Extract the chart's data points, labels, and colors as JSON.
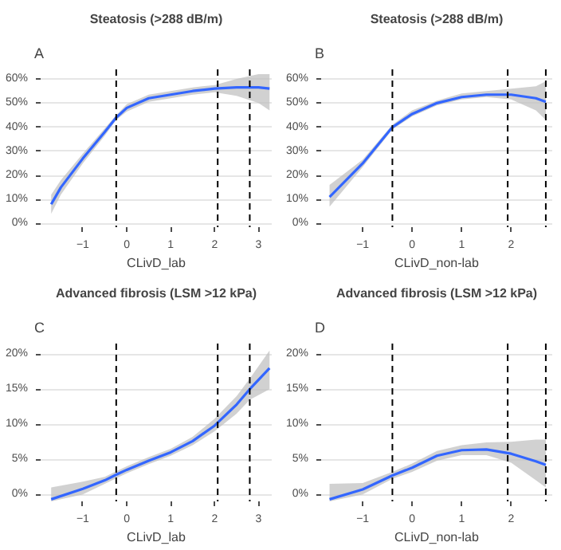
{
  "chart_data": [
    {
      "type": "line",
      "annotations": [
        "A"
      ],
      "title": "Steatosis (>288 dB/m)",
      "xlabel": "CLivD_lab",
      "xlim": [
        -1.96,
        3.3
      ],
      "xticks": [
        -1,
        0,
        1,
        2,
        3
      ],
      "ylim": [
        -1.5,
        64
      ],
      "yticks": [
        {
          "value": 0,
          "label": "0%"
        },
        {
          "value": 10,
          "label": "10%"
        },
        {
          "value": 20,
          "label": "20%"
        },
        {
          "value": 30,
          "label": "30%"
        },
        {
          "value": 40,
          "label": "40%"
        },
        {
          "value": 50,
          "label": "50%"
        },
        {
          "value": 60,
          "label": "60%"
        }
      ],
      "grid": "y",
      "line_style": "solid",
      "series": [
        {
          "color": "#3366ff",
          "x": [
            -1.72,
            -1.5,
            -1,
            -0.5,
            -0.24,
            0,
            0.5,
            1,
            1.5,
            2,
            2.5,
            3,
            3.25
          ],
          "values": [
            8,
            15,
            27,
            38,
            44,
            48,
            52,
            53.5,
            55,
            56,
            56.5,
            56.5,
            56
          ],
          "lower": [
            4,
            12,
            25,
            36.5,
            43,
            46.5,
            50.5,
            52,
            53.5,
            54.5,
            53,
            50,
            47
          ],
          "upper": [
            12,
            18,
            29,
            39.5,
            45,
            49.5,
            53.5,
            55,
            56.5,
            57.5,
            60,
            62,
            62
          ]
        }
      ],
      "ref_lines": [
        {
          "axis": "x",
          "value": -0.24,
          "line_style": "dashed",
          "color": "#000000"
        },
        {
          "axis": "x",
          "value": 2.07,
          "line_style": "dashed",
          "color": "#000000"
        },
        {
          "axis": "x",
          "value": 2.8,
          "line_style": "dashed",
          "color": "#000000"
        }
      ]
    },
    {
      "type": "line",
      "annotations": [
        "B"
      ],
      "title": "Steatosis (>288 dB/m)",
      "xlabel": "CLivD_non-lab",
      "xlim": [
        -1.84,
        2.83
      ],
      "xticks": [
        -1,
        0,
        1,
        2
      ],
      "ylim": [
        -1.5,
        64
      ],
      "yticks": [
        {
          "value": 0,
          "label": "0%"
        },
        {
          "value": 10,
          "label": "10%"
        },
        {
          "value": 20,
          "label": "20%"
        },
        {
          "value": 30,
          "label": "30%"
        },
        {
          "value": 40,
          "label": "40%"
        },
        {
          "value": 50,
          "label": "50%"
        },
        {
          "value": 60,
          "label": "60%"
        }
      ],
      "grid": "y",
      "line_style": "solid",
      "series": [
        {
          "color": "#3366ff",
          "x": [
            -1.67,
            -1,
            -0.4,
            0,
            0.5,
            1,
            1.5,
            2,
            2.5,
            2.7
          ],
          "values": [
            11,
            25,
            40,
            45.5,
            50,
            52.5,
            53.5,
            53.5,
            52,
            50.5
          ],
          "lower": [
            7,
            23.5,
            39,
            44.5,
            49,
            51.5,
            52.5,
            51.5,
            47,
            43
          ],
          "upper": [
            16,
            26.5,
            41,
            47,
            51,
            54,
            55,
            56,
            57,
            59
          ]
        }
      ],
      "ref_lines": [
        {
          "axis": "x",
          "value": -0.4,
          "line_style": "dashed",
          "color": "#000000"
        },
        {
          "axis": "x",
          "value": 1.93,
          "line_style": "dashed",
          "color": "#000000"
        },
        {
          "axis": "x",
          "value": 2.7,
          "line_style": "dashed",
          "color": "#000000"
        }
      ]
    },
    {
      "type": "line",
      "annotations": [
        "C"
      ],
      "title": "Advanced fibrosis (LSM >12 kPa)",
      "xlabel": "CLivD_lab",
      "xlim": [
        -1.96,
        3.3
      ],
      "xticks": [
        -1,
        0,
        1,
        2,
        3
      ],
      "ylim": [
        -1,
        21.5
      ],
      "yticks": [
        {
          "value": 0,
          "label": "0%"
        },
        {
          "value": 5,
          "label": "5%"
        },
        {
          "value": 10,
          "label": "10%"
        },
        {
          "value": 15,
          "label": "15%"
        },
        {
          "value": 20,
          "label": "20%"
        }
      ],
      "grid": "y",
      "line_style": "solid",
      "series": [
        {
          "color": "#3366ff",
          "x": [
            -1.72,
            -1,
            -0.5,
            -0.24,
            0,
            0.5,
            1,
            1.5,
            2,
            2.5,
            2.8,
            3.25
          ],
          "values": [
            -0.7,
            0.8,
            2,
            2.8,
            3.5,
            4.8,
            6,
            7.6,
            9.8,
            12.8,
            15,
            18
          ],
          "lower": [
            -1,
            0,
            1.5,
            2.3,
            3,
            4.3,
            5.5,
            7,
            9,
            11.5,
            13.5,
            15
          ],
          "upper": [
            1,
            1.8,
            2.5,
            3.3,
            4,
            5.3,
            6.5,
            8.2,
            10.8,
            14,
            16.5,
            20.5
          ]
        }
      ],
      "ref_lines": [
        {
          "axis": "x",
          "value": -0.24,
          "line_style": "dashed",
          "color": "#000000"
        },
        {
          "axis": "x",
          "value": 2.07,
          "line_style": "dashed",
          "color": "#000000"
        },
        {
          "axis": "x",
          "value": 2.8,
          "line_style": "dashed",
          "color": "#000000"
        }
      ]
    },
    {
      "type": "line",
      "annotations": [
        "D"
      ],
      "title": "Advanced fibrosis (LSM >12 kPa)",
      "xlabel": "CLivD_non-lab",
      "xlim": [
        -1.84,
        2.83
      ],
      "xticks": [
        -1,
        0,
        1,
        2
      ],
      "ylim": [
        -1,
        21.5
      ],
      "yticks": [
        {
          "value": 0,
          "label": "0%"
        },
        {
          "value": 5,
          "label": "5%"
        },
        {
          "value": 10,
          "label": "10%"
        },
        {
          "value": 15,
          "label": "15%"
        },
        {
          "value": 20,
          "label": "20%"
        }
      ],
      "grid": "y",
      "line_style": "solid",
      "series": [
        {
          "color": "#3366ff",
          "x": [
            -1.67,
            -1,
            -0.4,
            0,
            0.5,
            1,
            1.5,
            2,
            2.5,
            2.7
          ],
          "values": [
            -0.7,
            0.7,
            2.7,
            3.8,
            5.5,
            6.3,
            6.4,
            5.8,
            4.7,
            4.2
          ],
          "lower": [
            -1,
            0,
            2.2,
            3.2,
            4.8,
            5.6,
            5.6,
            4.5,
            2,
            1
          ],
          "upper": [
            1.5,
            1.6,
            3.2,
            4.4,
            6.2,
            7,
            7.4,
            7.5,
            7.8,
            7.8
          ]
        }
      ],
      "ref_lines": [
        {
          "axis": "x",
          "value": -0.4,
          "line_style": "dashed",
          "color": "#000000"
        },
        {
          "axis": "x",
          "value": 1.93,
          "line_style": "dashed",
          "color": "#000000"
        },
        {
          "axis": "x",
          "value": 2.7,
          "line_style": "dashed",
          "color": "#000000"
        }
      ]
    }
  ]
}
